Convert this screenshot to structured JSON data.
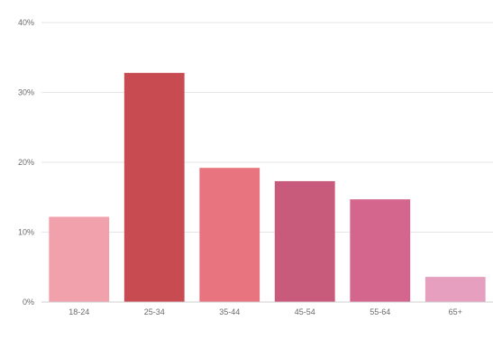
{
  "chart_data": {
    "type": "bar",
    "categories": [
      "18-24",
      "25-34",
      "35-44",
      "45-54",
      "55-64",
      "65+"
    ],
    "values": [
      12.2,
      32.8,
      19.2,
      17.3,
      14.7,
      3.6
    ],
    "colors": [
      "#f0a1ab",
      "#c84b52",
      "#e8747f",
      "#c85a7c",
      "#d4668e",
      "#e79fbf"
    ],
    "ylim": [
      0,
      40
    ],
    "yticks": [
      {
        "value": 0,
        "label": "0%"
      },
      {
        "value": 10,
        "label": "10%"
      },
      {
        "value": 20,
        "label": "20%"
      },
      {
        "value": 30,
        "label": "30%"
      },
      {
        "value": 40,
        "label": "40%"
      }
    ],
    "grid": true,
    "title": "",
    "xlabel": "",
    "ylabel": ""
  }
}
